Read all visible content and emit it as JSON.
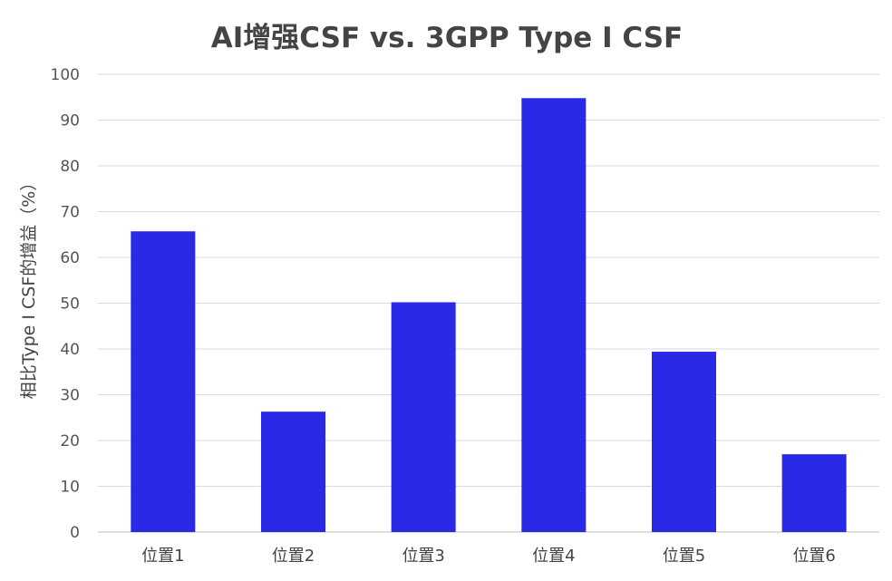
{
  "chart_data": {
    "type": "bar",
    "title": "AI增强CSF vs. 3GPP Type I CSF",
    "xlabel": "",
    "ylabel": "相比Type I CSF的增益（%）",
    "categories": [
      "位置1",
      "位置2",
      "位置3",
      "位置4",
      "位置5",
      "位置6"
    ],
    "values": [
      65.7,
      26.3,
      50.2,
      94.8,
      39.4,
      17.0
    ],
    "ylim": [
      0,
      100
    ],
    "yticks": [
      "0",
      "10",
      "20",
      "30",
      "40",
      "50",
      "60",
      "70",
      "80",
      "90",
      "100"
    ],
    "grid": true,
    "legend": "none",
    "bar_color": "#2a2ae6"
  }
}
